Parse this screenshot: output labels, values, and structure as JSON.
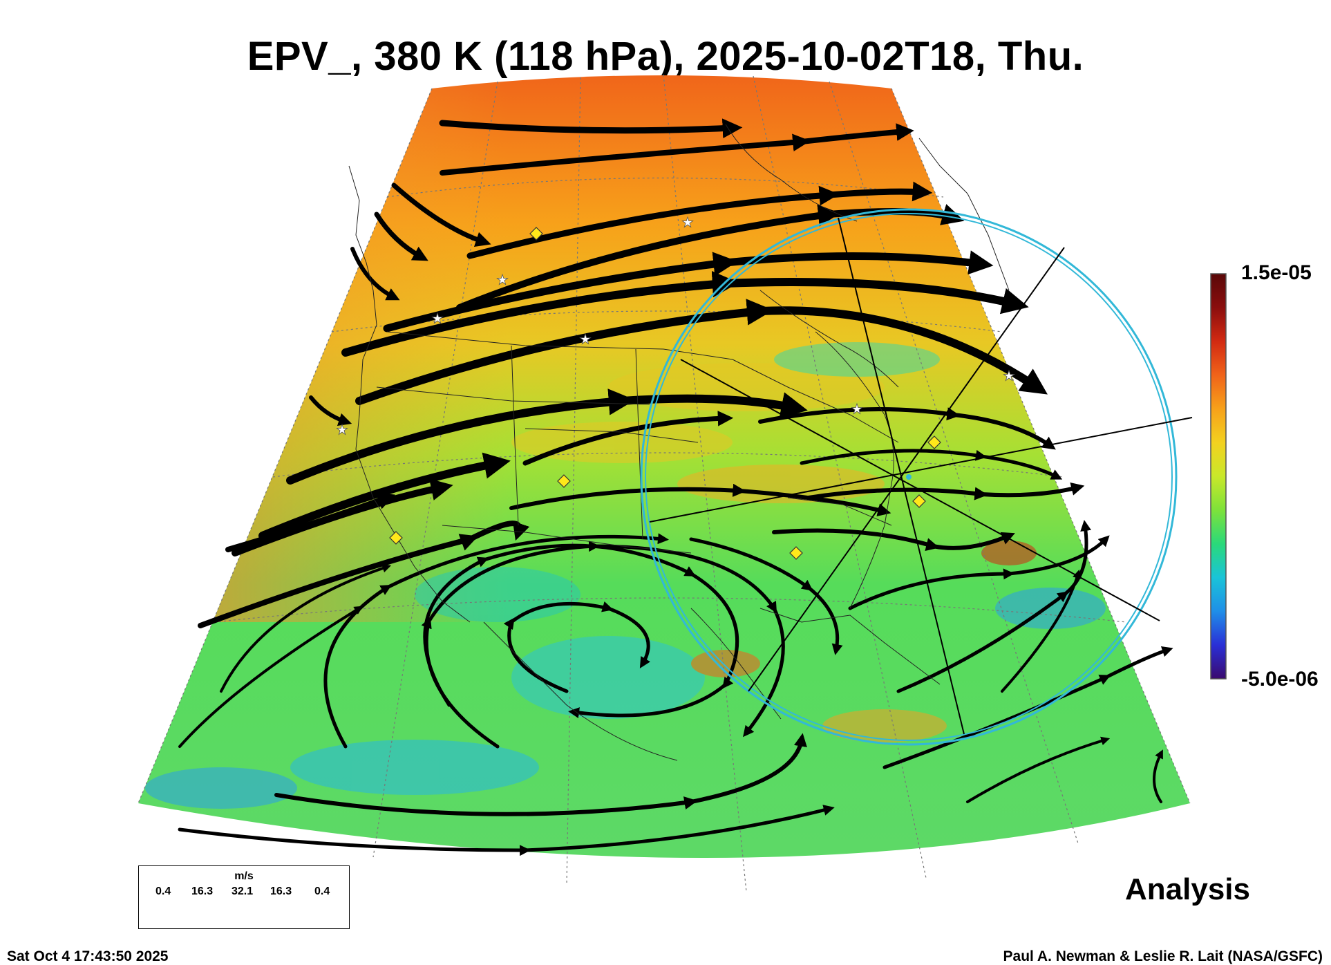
{
  "title": "EPV_, 380 K (118 hPa), 2025-10-02T18, Thu.",
  "analysis_label": "Analysis",
  "footer": {
    "timestamp": "Sat Oct  4 17:43:50 2025",
    "credit": "Paul A. Newman & Leslie R. Lait (NASA/GSFC)"
  },
  "colorbar": {
    "max_label": "1.5e-05",
    "min_label": "-5.0e-06",
    "colors": [
      "#3a0a6e",
      "#2a2fd6",
      "#1f8fe8",
      "#19c4d8",
      "#2ad97a",
      "#7ee23a",
      "#c9e82a",
      "#f3d11f",
      "#f7a11a",
      "#f0631a",
      "#d22a12",
      "#8a0e0e",
      "#5a0808"
    ]
  },
  "legend": {
    "unit": "m/s",
    "values": [
      "0.4",
      "16.3",
      "32.1",
      "16.3",
      "0.4"
    ]
  },
  "map": {
    "ocean_fill": "#6fdc52",
    "north_fill": "#f28a2a",
    "circle_color": "#32b8d8"
  }
}
